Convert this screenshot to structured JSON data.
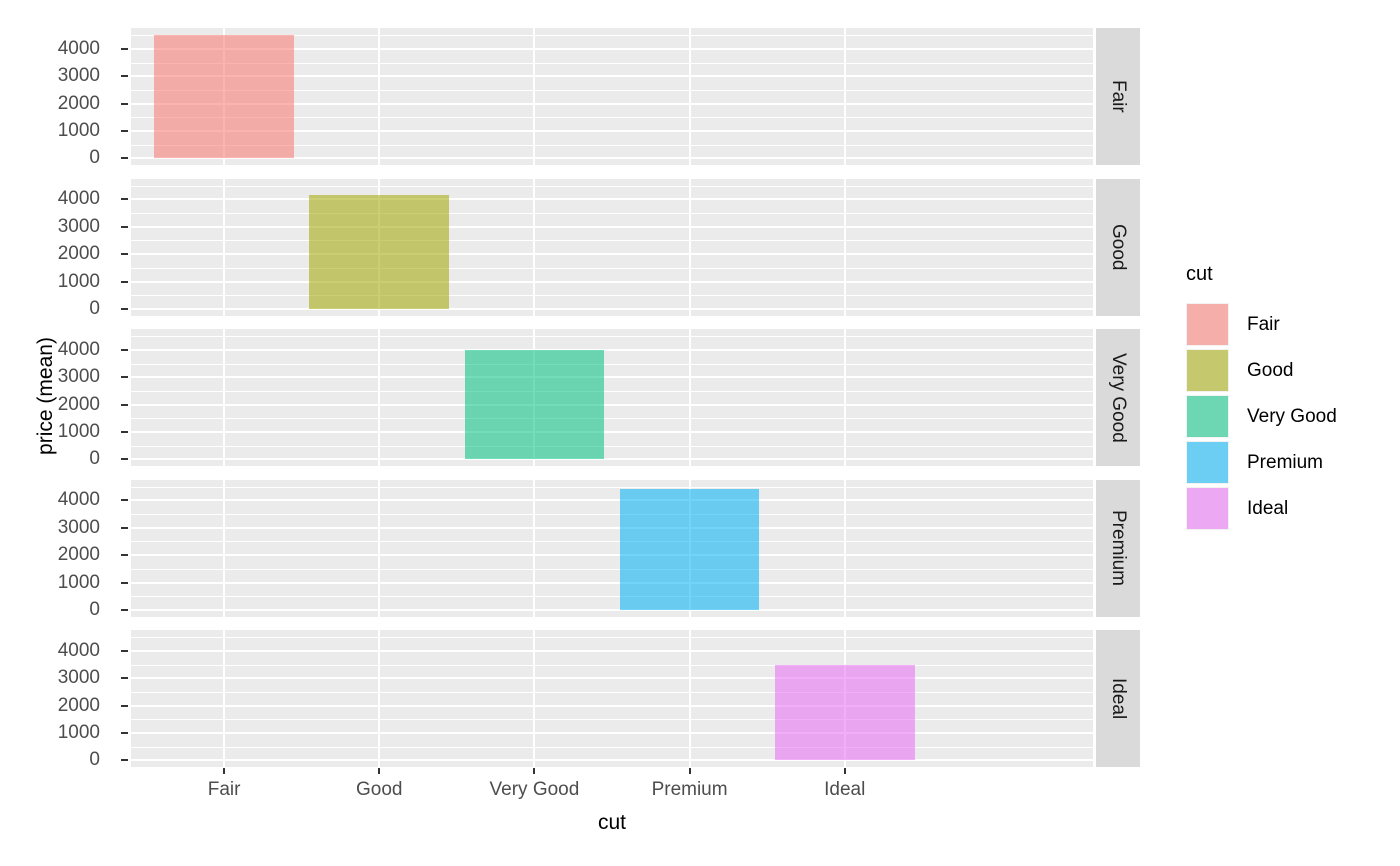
{
  "chart_data": {
    "type": "bar",
    "title": "",
    "xlabel": "cut",
    "ylabel": "price (mean)",
    "categories": [
      "Fair",
      "Good",
      "Very Good",
      "Premium",
      "Ideal"
    ],
    "values": [
      4500,
      4150,
      3980,
      4400,
      3500
    ],
    "facets": [
      "Fair",
      "Good",
      "Very Good",
      "Premium",
      "Ideal"
    ],
    "facet_note": "one horizontal facet panel per cut level; each panel contains only its own category's bar",
    "y_ticks": [
      0,
      1000,
      2000,
      3000,
      4000
    ],
    "ylim": [
      -240,
      4760
    ],
    "bar_width_fraction": 0.9,
    "grid": {
      "major": true,
      "minor": true,
      "gridline_color": "#FFFFFF"
    },
    "legend": {
      "title": "cut",
      "position": "right",
      "fill_alpha": 0.55,
      "entries": [
        {
          "label": "Fair",
          "color": "#F8766D"
        },
        {
          "label": "Good",
          "color": "#A3A500"
        },
        {
          "label": "Very Good",
          "color": "#00BF7D"
        },
        {
          "label": "Premium",
          "color": "#00B0F6"
        },
        {
          "label": "Ideal",
          "color": "#E76BF3"
        }
      ]
    },
    "colors": {
      "panel_bg": "#EBEBEB",
      "strip_bg": "#DADADA",
      "strip_text": "#1A1A1A",
      "tick_label": "#4D4D4D",
      "tick_mark": "#333333",
      "axis_title": "#000000",
      "background": "#FFFFFF"
    }
  }
}
